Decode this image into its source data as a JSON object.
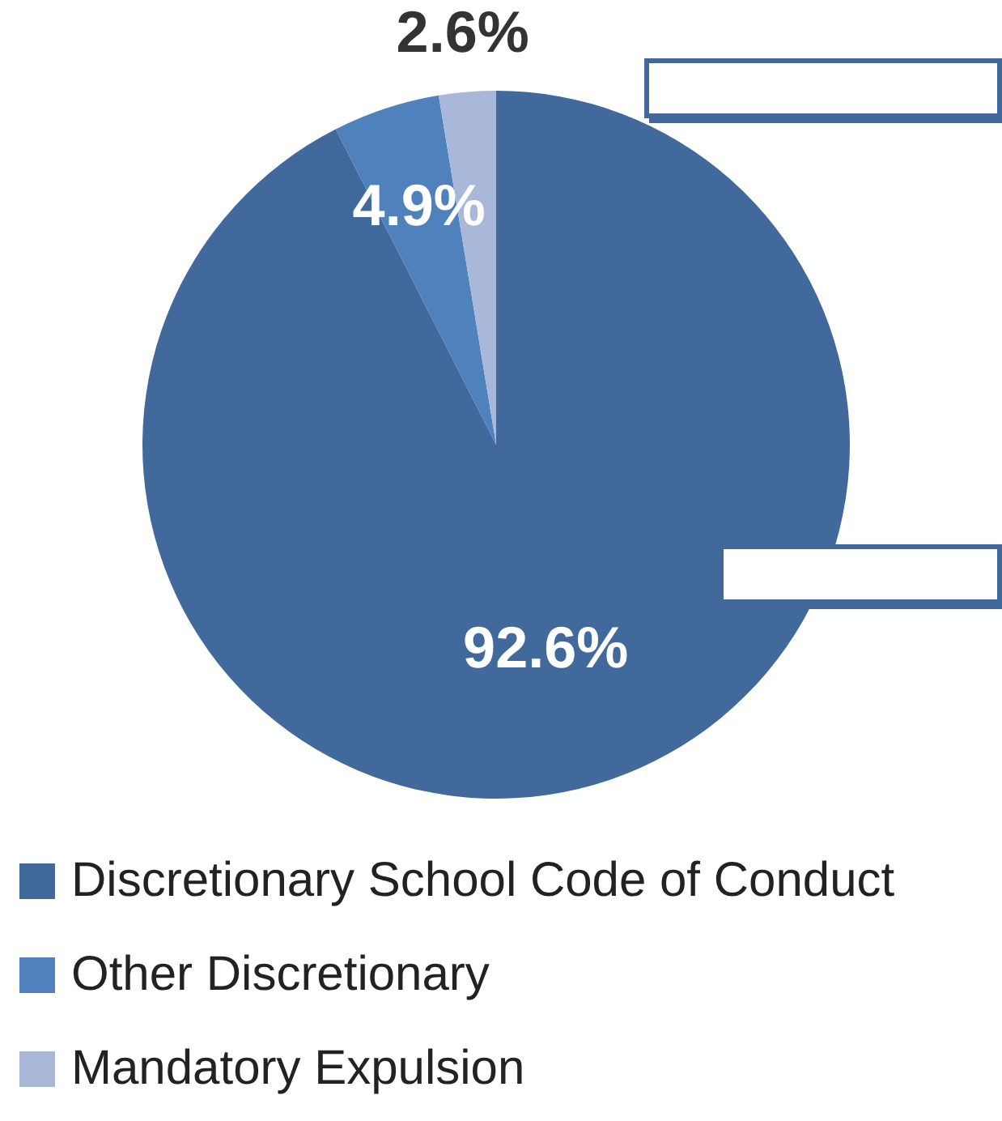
{
  "chart_data": {
    "type": "pie",
    "categories": [
      "Discretionary School Code of Conduct",
      "Other Discretionary",
      "Mandatory Expulsion"
    ],
    "values": [
      92.6,
      4.9,
      2.6
    ],
    "colors": [
      "#41699c",
      "#4f81bd",
      "#a9b8d9"
    ],
    "value_labels": [
      "92.6%",
      "4.9%",
      "2.6%"
    ],
    "legend": "bottom"
  }
}
